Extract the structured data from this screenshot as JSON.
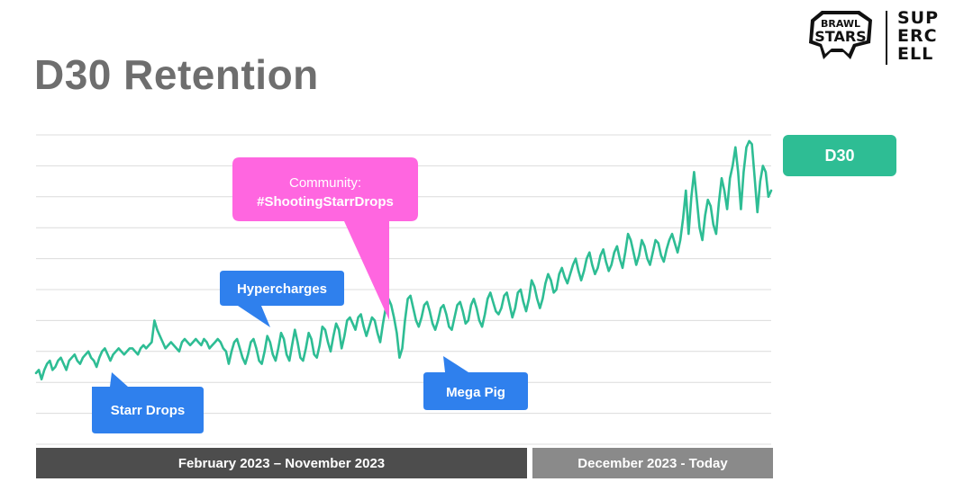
{
  "slide": {
    "title": "D30 Retention",
    "logos": {
      "brawl_stars": [
        "BRAWL",
        "STARS"
      ],
      "supercell": [
        "SUP",
        "ERC",
        "ELL"
      ]
    }
  },
  "chart_data": {
    "type": "line",
    "title": "D30 Retention",
    "xlabel": "",
    "ylabel": "",
    "ylim": [
      0,
      100
    ],
    "grid": true,
    "legend": {
      "position": "top-right",
      "entries": [
        {
          "name": "D30",
          "color": "#2ebd94"
        }
      ]
    },
    "series": [
      {
        "name": "D30",
        "color": "#2ebd94",
        "note_values": "relative level on a 0-100 scale (no axis values printed)",
        "values": [
          23,
          24,
          21,
          24,
          26,
          27,
          24,
          25,
          27,
          28,
          26,
          24,
          27,
          28,
          29,
          27,
          26,
          28,
          29,
          30,
          28,
          27,
          25,
          28,
          30,
          31,
          29,
          27,
          29,
          30,
          31,
          30,
          29,
          30,
          31,
          31,
          30,
          29,
          31,
          32,
          31,
          32,
          33,
          40,
          37,
          35,
          33,
          31,
          32,
          33,
          32,
          31,
          30,
          33,
          34,
          33,
          32,
          33,
          34,
          33,
          32,
          34,
          33,
          31,
          32,
          33,
          34,
          33,
          31,
          30,
          26,
          30,
          33,
          34,
          31,
          28,
          26,
          29,
          33,
          34,
          31,
          27,
          26,
          30,
          35,
          33,
          29,
          27,
          31,
          36,
          34,
          29,
          27,
          32,
          37,
          33,
          28,
          27,
          31,
          36,
          34,
          29,
          28,
          32,
          38,
          37,
          33,
          30,
          35,
          39,
          37,
          31,
          35,
          40,
          41,
          39,
          37,
          41,
          42,
          38,
          35,
          38,
          41,
          40,
          36,
          33,
          39,
          44,
          47,
          45,
          41,
          36,
          28,
          31,
          40,
          47,
          48,
          44,
          40,
          38,
          41,
          45,
          46,
          43,
          39,
          37,
          40,
          44,
          45,
          42,
          38,
          37,
          41,
          45,
          46,
          43,
          39,
          40,
          45,
          47,
          44,
          40,
          38,
          42,
          47,
          49,
          46,
          43,
          42,
          44,
          48,
          49,
          45,
          41,
          44,
          49,
          50,
          46,
          43,
          47,
          53,
          51,
          47,
          44,
          47,
          52,
          55,
          53,
          49,
          50,
          55,
          57,
          54,
          52,
          55,
          58,
          60,
          56,
          53,
          56,
          60,
          62,
          58,
          55,
          57,
          61,
          63,
          59,
          56,
          58,
          62,
          64,
          60,
          57,
          62,
          68,
          66,
          62,
          58,
          61,
          66,
          64,
          60,
          58,
          62,
          66,
          65,
          61,
          59,
          63,
          66,
          68,
          65,
          62,
          66,
          73,
          82,
          68,
          80,
          88,
          79,
          70,
          66,
          74,
          79,
          77,
          71,
          68,
          78,
          86,
          82,
          76,
          86,
          90,
          96,
          88,
          76,
          88,
          96,
          98,
          97,
          86,
          75,
          85,
          90,
          88,
          80,
          82
        ]
      }
    ],
    "annotations": [
      {
        "label": "Starr Drops",
        "color": "#2f80ed"
      },
      {
        "label": "Hypercharges",
        "color": "#2f80ed"
      },
      {
        "label": "Community:",
        "label2": "#ShootingStarrDrops",
        "color": "#ff66e0"
      },
      {
        "label": "Mega Pig",
        "color": "#2f80ed"
      }
    ],
    "periods": [
      {
        "label": "February 2023 – November 2023",
        "color": "#4d4d4d"
      },
      {
        "label": "December 2023 - Today",
        "color": "#8a8a8a"
      }
    ]
  }
}
